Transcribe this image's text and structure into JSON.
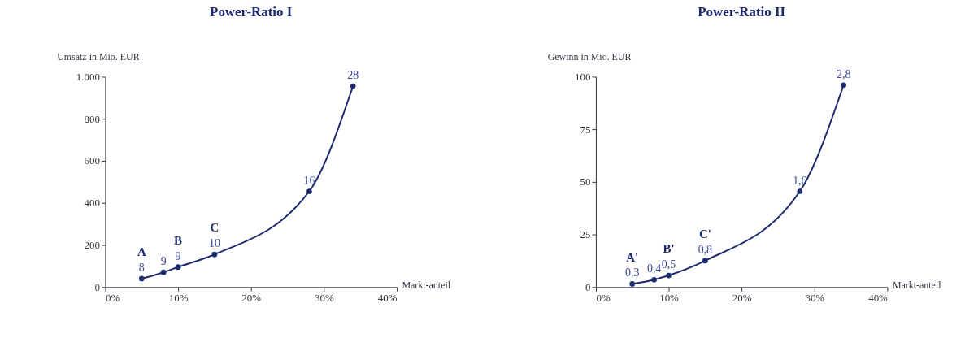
{
  "chart_data": [
    {
      "type": "line",
      "title": "Power-Ratio I",
      "ylabel": "Umsatz in Mio. EUR",
      "xlabel": "Markt-anteil",
      "x": [
        5,
        8,
        10,
        15,
        28,
        34
      ],
      "series": [
        {
          "color": "#1c2a6e",
          "values": [
            40,
            70,
            95,
            155,
            455,
            955
          ]
        }
      ],
      "annotations": [
        {
          "text": "8",
          "x": 5,
          "y": 40
        },
        {
          "text": "9",
          "x": 8,
          "y": 70
        },
        {
          "text": "9",
          "x": 10,
          "y": 95
        },
        {
          "text": "10",
          "x": 15,
          "y": 155
        },
        {
          "text": "16",
          "x": 28,
          "y": 455
        },
        {
          "text": "28",
          "x": 34,
          "y": 955
        },
        {
          "text": "A",
          "x": 5,
          "y": 40
        },
        {
          "text": "B",
          "x": 10,
          "y": 95
        },
        {
          "text": "C",
          "x": 15,
          "y": 155
        }
      ],
      "xlim": [
        0,
        40
      ],
      "xticks": [
        {
          "value": 0,
          "label": "0%"
        },
        {
          "value": 10,
          "label": "10%"
        },
        {
          "value": 20,
          "label": "20%"
        },
        {
          "value": 30,
          "label": "30%"
        },
        {
          "value": 40,
          "label": "40%"
        }
      ],
      "ylim": [
        0,
        1000
      ],
      "yticks": [
        0,
        200,
        400,
        600,
        800,
        {
          "value": 1000,
          "label": "1.000"
        }
      ],
      "marker": "circle",
      "line_style": "solid"
    },
    {
      "type": "line",
      "title": "Power-Ratio II",
      "ylabel": "Gewinn in Mio. EUR",
      "xlabel": "Markt-anteil",
      "x": [
        5,
        8,
        10,
        15,
        28,
        34
      ],
      "series": [
        {
          "color": "#1c2a6e",
          "values": [
            1.5,
            3.5,
            5.5,
            12.5,
            45.5,
            96
          ]
        }
      ],
      "annotations": [
        {
          "text": "0,3",
          "x": 5,
          "y": 1.5
        },
        {
          "text": "0,4",
          "x": 8,
          "y": 3.5
        },
        {
          "text": "0,5",
          "x": 10,
          "y": 5.5
        },
        {
          "text": "0,8",
          "x": 15,
          "y": 12.5
        },
        {
          "text": "1,6",
          "x": 28,
          "y": 45.5
        },
        {
          "text": "2,8",
          "x": 34,
          "y": 96
        },
        {
          "text": "A'",
          "x": 5,
          "y": 1.5
        },
        {
          "text": "B'",
          "x": 10,
          "y": 5.5
        },
        {
          "text": "C'",
          "x": 15,
          "y": 12.5
        }
      ],
      "xlim": [
        0,
        40
      ],
      "xticks": [
        {
          "value": 0,
          "label": "0%"
        },
        {
          "value": 10,
          "label": "10%"
        },
        {
          "value": 20,
          "label": "20%"
        },
        {
          "value": 30,
          "label": "30%"
        },
        {
          "value": 40,
          "label": "40%"
        }
      ],
      "ylim": [
        0,
        100
      ],
      "yticks": [
        0,
        25,
        50,
        75,
        100
      ],
      "marker": "circle",
      "line_style": "solid"
    }
  ]
}
